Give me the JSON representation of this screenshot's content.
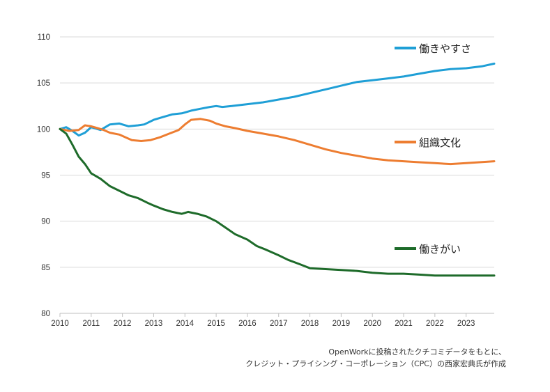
{
  "chart_data": {
    "type": "line",
    "title": "",
    "xlabel": "",
    "ylabel": "",
    "xlim": [
      2010,
      2023.9
    ],
    "ylim": [
      80,
      110
    ],
    "yticks": [
      80,
      85,
      90,
      95,
      100,
      105,
      110
    ],
    "xticks": [
      "2010",
      "2011",
      "2012",
      "2013",
      "2014",
      "2015",
      "2016",
      "2017",
      "2018",
      "2019",
      "2020",
      "2021",
      "2022",
      "2023"
    ],
    "grid": "horizontal",
    "legend_placement": "inline-right",
    "series": [
      {
        "name": "働きやすさ",
        "color": "#1f9fd6",
        "x": [
          2010,
          2010.2,
          2010.4,
          2010.6,
          2010.8,
          2011,
          2011.3,
          2011.6,
          2011.9,
          2012.2,
          2012.5,
          2012.7,
          2013,
          2013.3,
          2013.6,
          2013.9,
          2014.2,
          2014.5,
          2014.8,
          2015,
          2015.2,
          2015.5,
          2016,
          2016.5,
          2017,
          2017.5,
          2018,
          2018.5,
          2019,
          2019.5,
          2020,
          2020.5,
          2021,
          2021.5,
          2022,
          2022.5,
          2023,
          2023.5,
          2023.9
        ],
        "y": [
          100,
          100.2,
          99.8,
          99.3,
          99.6,
          100.2,
          99.9,
          100.5,
          100.6,
          100.3,
          100.4,
          100.5,
          101,
          101.3,
          101.6,
          101.7,
          102,
          102.2,
          102.4,
          102.5,
          102.4,
          102.5,
          102.7,
          102.9,
          103.2,
          103.5,
          103.9,
          104.3,
          104.7,
          105.1,
          105.3,
          105.5,
          105.7,
          106,
          106.3,
          106.5,
          106.6,
          106.8,
          107.1
        ]
      },
      {
        "name": "組織文化",
        "color": "#ed7d31",
        "x": [
          2010,
          2010.3,
          2010.6,
          2010.8,
          2011,
          2011.2,
          2011.4,
          2011.6,
          2011.9,
          2012.1,
          2012.3,
          2012.6,
          2012.9,
          2013.2,
          2013.5,
          2013.8,
          2014,
          2014.2,
          2014.5,
          2014.8,
          2015,
          2015.3,
          2015.6,
          2016,
          2016.5,
          2017,
          2017.5,
          2018,
          2018.5,
          2019,
          2019.5,
          2020,
          2020.5,
          2021,
          2021.5,
          2022,
          2022.5,
          2023,
          2023.9
        ],
        "y": [
          100,
          99.8,
          99.9,
          100.4,
          100.3,
          100.1,
          99.9,
          99.6,
          99.4,
          99.1,
          98.8,
          98.7,
          98.8,
          99.1,
          99.5,
          99.9,
          100.5,
          101,
          101.1,
          100.9,
          100.6,
          100.3,
          100.1,
          99.8,
          99.5,
          99.2,
          98.8,
          98.3,
          97.8,
          97.4,
          97.1,
          96.8,
          96.6,
          96.5,
          96.4,
          96.3,
          96.2,
          96.3,
          96.5
        ]
      },
      {
        "name": "働きがい",
        "color": "#1e6b2a",
        "x": [
          2010,
          2010.2,
          2010.4,
          2010.6,
          2010.8,
          2011,
          2011.3,
          2011.6,
          2011.9,
          2012.2,
          2012.5,
          2012.8,
          2013,
          2013.3,
          2013.6,
          2013.9,
          2014.1,
          2014.4,
          2014.7,
          2015,
          2015.3,
          2015.6,
          2016,
          2016.3,
          2016.6,
          2017,
          2017.3,
          2017.7,
          2018,
          2018.5,
          2019,
          2019.5,
          2020,
          2020.5,
          2021,
          2021.5,
          2022,
          2023,
          2023.9
        ],
        "y": [
          100,
          99.5,
          98.3,
          97,
          96.2,
          95.2,
          94.6,
          93.8,
          93.3,
          92.8,
          92.5,
          92,
          91.7,
          91.3,
          91,
          90.8,
          91,
          90.8,
          90.5,
          90,
          89.3,
          88.6,
          88,
          87.3,
          86.9,
          86.3,
          85.8,
          85.3,
          84.9,
          84.8,
          84.7,
          84.6,
          84.4,
          84.3,
          84.3,
          84.2,
          84.1,
          84.1,
          84.1
        ]
      }
    ]
  },
  "source_note": {
    "line1": "OpenWorkに投稿されたクチコミデータをもとに、",
    "line2": "クレジット・プライシング・コーポレーション（CPC）の西家宏典氏が作成"
  }
}
